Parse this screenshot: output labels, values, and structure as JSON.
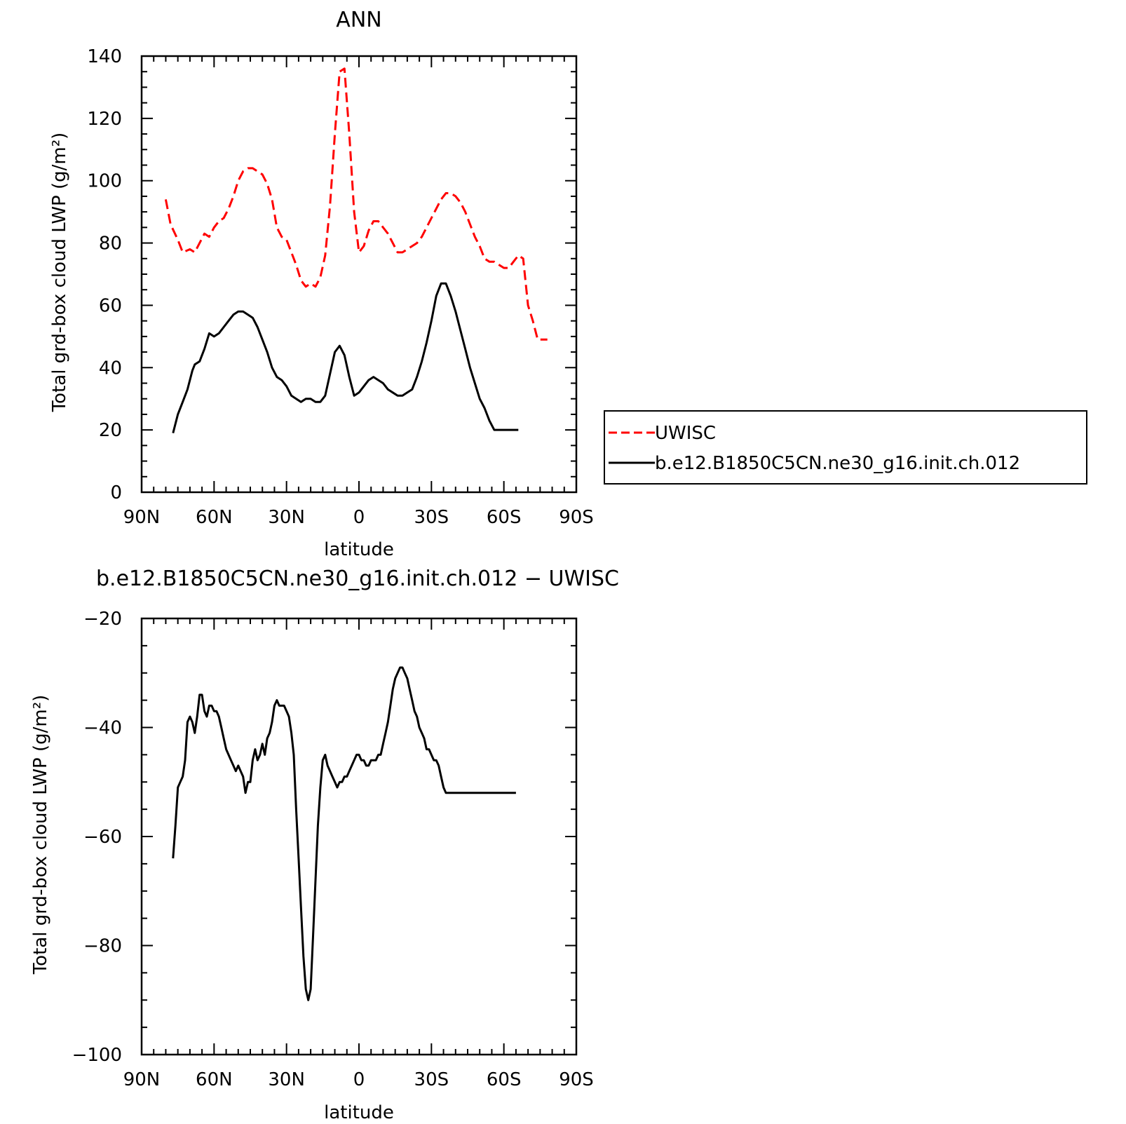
{
  "chart_data": [
    {
      "type": "line",
      "title": "ANN",
      "xlabel": "latitude",
      "ylabel": "Total grd-box cloud LWP (g/m²)",
      "xlim": [
        90,
        -90
      ],
      "ylim": [
        0,
        140
      ],
      "x_ticks": [
        90,
        60,
        30,
        0,
        -30,
        -60,
        -90
      ],
      "x_tick_labels": [
        "90N",
        "60N",
        "30N",
        "0",
        "30S",
        "60S",
        "90S"
      ],
      "y_ticks": [
        0,
        20,
        40,
        60,
        80,
        100,
        120,
        140
      ],
      "y_tick_labels": [
        "0",
        "20",
        "40",
        "60",
        "80",
        "100",
        "120",
        "140"
      ],
      "legend": "right",
      "series": [
        {
          "name": "UWISC",
          "color": "#ff0000",
          "dash": "dashed",
          "x": [
            80,
            78,
            75,
            73,
            70,
            68,
            66,
            64,
            62,
            60,
            58,
            56,
            54,
            52,
            50,
            48,
            46,
            44,
            42,
            40,
            38,
            36,
            34,
            32,
            30,
            28,
            26,
            24,
            22,
            20,
            18,
            16,
            14,
            12,
            10,
            8,
            6,
            4,
            2,
            0,
            -2,
            -4,
            -6,
            -8,
            -10,
            -12,
            -14,
            -16,
            -18,
            -20,
            -22,
            -24,
            -26,
            -28,
            -30,
            -32,
            -34,
            -36,
            -38,
            -40,
            -42,
            -44,
            -46,
            -48,
            -50,
            -52,
            -54,
            -56,
            -58,
            -60,
            -62,
            -64,
            -66,
            -68,
            -70,
            -72,
            -74,
            -76,
            -78
          ],
          "values": [
            94,
            86,
            81,
            77,
            78,
            77,
            80,
            83,
            82,
            85,
            87,
            88,
            91,
            95,
            100,
            103,
            104,
            104,
            103,
            102,
            99,
            94,
            85,
            82,
            81,
            77,
            73,
            68,
            66,
            67,
            66,
            69,
            76,
            92,
            115,
            135,
            136,
            115,
            90,
            77,
            79,
            84,
            87,
            87,
            85,
            83,
            80,
            77,
            77,
            78,
            79,
            80,
            82,
            85,
            88,
            91,
            94,
            96,
            96,
            95,
            93,
            90,
            86,
            82,
            79,
            75,
            74,
            74,
            73,
            72,
            72,
            74,
            76,
            75,
            60,
            55,
            49,
            49,
            49
          ]
        },
        {
          "name": "b.e12.B1850C5CN.ne30_g16.init.ch.012",
          "color": "#000000",
          "dash": "solid",
          "x": [
            77,
            75,
            73,
            71,
            69,
            68,
            66,
            64,
            62,
            60,
            58,
            56,
            54,
            52,
            50,
            48,
            46,
            44,
            42,
            40,
            38,
            36,
            34,
            32,
            30,
            28,
            26,
            24,
            22,
            20,
            18,
            16,
            14,
            12,
            10,
            8,
            6,
            4,
            2,
            0,
            -2,
            -4,
            -6,
            -8,
            -10,
            -12,
            -14,
            -16,
            -18,
            -20,
            -22,
            -24,
            -26,
            -28,
            -30,
            -32,
            -34,
            -36,
            -38,
            -40,
            -42,
            -44,
            -46,
            -48,
            -50,
            -52,
            -54,
            -56,
            -58,
            -60,
            -62,
            -64,
            -66
          ],
          "values": [
            19,
            25,
            29,
            33,
            39,
            41,
            42,
            46,
            51,
            50,
            51,
            53,
            55,
            57,
            58,
            58,
            57,
            56,
            53,
            49,
            45,
            40,
            37,
            36,
            34,
            31,
            30,
            29,
            30,
            30,
            29,
            29,
            31,
            38,
            45,
            47,
            44,
            37,
            31,
            32,
            34,
            36,
            37,
            36,
            35,
            33,
            32,
            31,
            31,
            32,
            33,
            37,
            42,
            48,
            55,
            63,
            67,
            67,
            63,
            58,
            52,
            46,
            40,
            35,
            30,
            27,
            23,
            20,
            20,
            20,
            20,
            20,
            20
          ]
        }
      ]
    },
    {
      "type": "line",
      "title": "b.e12.B1850C5CN.ne30_g16.init.ch.012 − UWISC",
      "xlabel": "latitude",
      "ylabel": "Total grd-box cloud LWP (g/m²)",
      "xlim": [
        90,
        -90
      ],
      "ylim": [
        -100,
        -20
      ],
      "x_ticks": [
        90,
        60,
        30,
        0,
        -30,
        -60,
        -90
      ],
      "x_tick_labels": [
        "90N",
        "60N",
        "30N",
        "0",
        "30S",
        "60S",
        "90S"
      ],
      "y_ticks": [
        -100,
        -80,
        -60,
        -40,
        -20
      ],
      "y_tick_labels": [
        "−100",
        "−80",
        "−60",
        "−40",
        "−20"
      ],
      "series": [
        {
          "color": "#000000",
          "dash": "solid",
          "x": [
            77,
            76,
            75,
            74,
            73,
            72,
            71,
            70,
            69,
            68,
            67,
            66,
            65,
            64,
            63,
            62,
            61,
            60,
            59,
            58,
            57,
            56,
            55,
            54,
            53,
            52,
            51,
            50,
            49,
            48,
            47,
            46,
            45,
            44,
            43,
            42,
            41,
            40,
            39,
            38,
            37,
            36,
            35,
            34,
            33,
            32,
            31,
            30,
            29,
            28,
            27,
            26,
            25,
            24,
            23,
            22,
            21,
            20,
            19,
            18,
            17,
            16,
            15,
            14,
            13,
            12,
            11,
            10,
            9,
            8,
            7,
            6,
            5,
            4,
            3,
            2,
            1,
            0,
            -1,
            -2,
            -3,
            -4,
            -5,
            -6,
            -7,
            -8,
            -9,
            -10,
            -11,
            -12,
            -13,
            -14,
            -15,
            -16,
            -17,
            -18,
            -19,
            -20,
            -21,
            -22,
            -23,
            -24,
            -25,
            -26,
            -27,
            -28,
            -29,
            -30,
            -31,
            -32,
            -33,
            -34,
            -35,
            -36,
            -37,
            -38,
            -39,
            -40,
            -41,
            -42,
            -43,
            -44,
            -45,
            -46,
            -47,
            -48,
            -49,
            -50,
            -51,
            -52,
            -53,
            -54,
            -55,
            -56,
            -57,
            -58,
            -59,
            -60,
            -61,
            -62,
            -63,
            -64,
            -65
          ],
          "values": [
            -64,
            -58,
            -51,
            -50,
            -49,
            -46,
            -39,
            -38,
            -39,
            -41,
            -38,
            -34,
            -34,
            -37,
            -38,
            -36,
            -36,
            -37,
            -37,
            -38,
            -40,
            -42,
            -44,
            -45,
            -46,
            -47,
            -48,
            -47,
            -48,
            -49,
            -52,
            -50,
            -50,
            -46,
            -44,
            -46,
            -45,
            -43,
            -45,
            -42,
            -41,
            -39,
            -36,
            -35,
            -36,
            -36,
            -36,
            -37,
            -38,
            -41,
            -45,
            -55,
            -64,
            -73,
            -82,
            -88,
            -90,
            -88,
            -78,
            -68,
            -58,
            -51,
            -46,
            -45,
            -47,
            -48,
            -49,
            -50,
            -51,
            -50,
            -50,
            -49,
            -49,
            -48,
            -47,
            -46,
            -45,
            -45,
            -46,
            -46,
            -47,
            -47,
            -46,
            -46,
            -46,
            -45,
            -45,
            -43,
            -41,
            -39,
            -36,
            -33,
            -31,
            -30,
            -29,
            -29,
            -30,
            -31,
            -33,
            -35,
            -37,
            -38,
            -40,
            -41,
            -42,
            -44,
            -44,
            -45,
            -46,
            -46,
            -47,
            -49,
            -51,
            -52,
            -52,
            -52,
            -52,
            -52,
            -52,
            -52,
            -52,
            -52,
            -52,
            -52,
            -52,
            -52,
            -52,
            -52,
            -52,
            -52,
            -52,
            -52,
            -52,
            -52,
            -52,
            -52,
            -52,
            -52,
            -52,
            -52,
            -52,
            -52,
            -52
          ]
        }
      ]
    }
  ]
}
